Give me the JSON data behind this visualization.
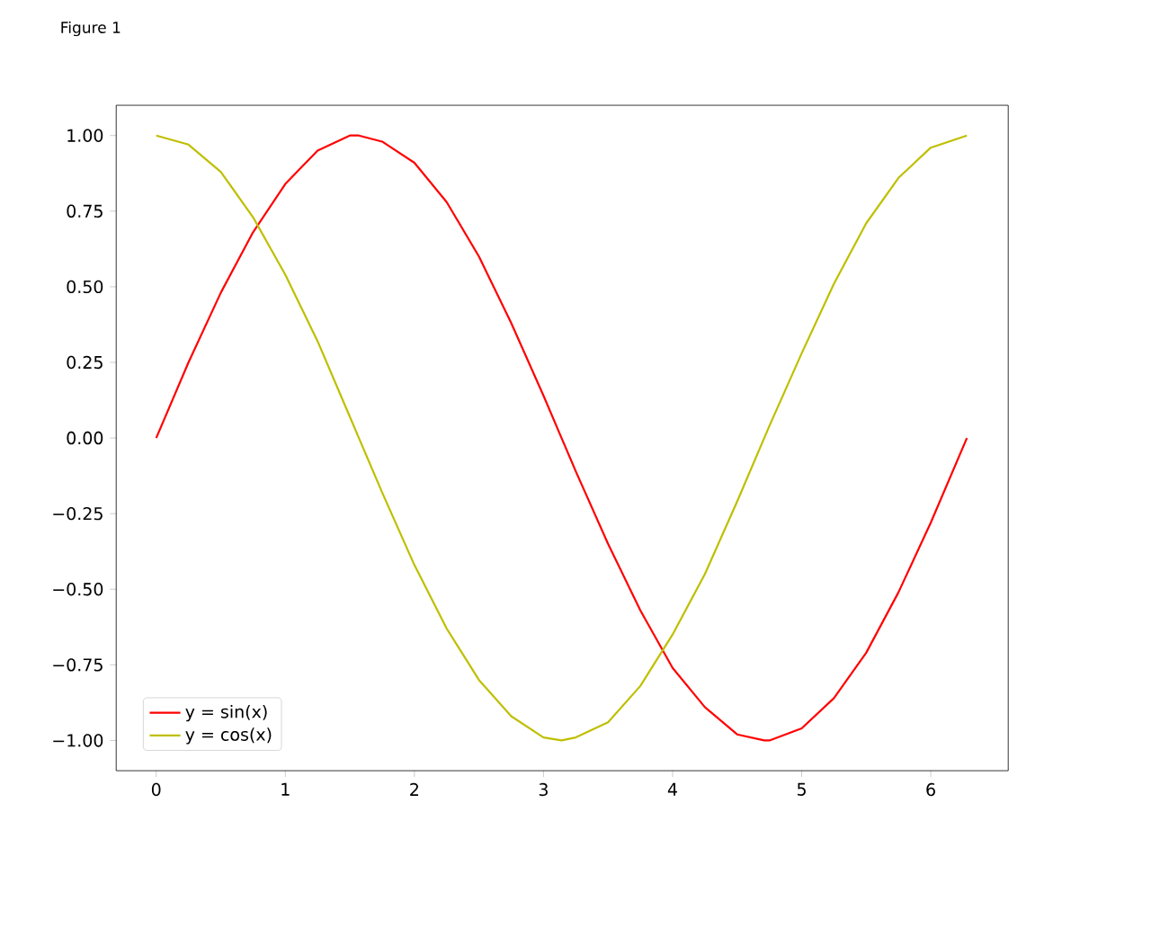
{
  "chart_data": {
    "type": "line",
    "annotations": [
      "Figure 1"
    ],
    "x": [
      0,
      0.25,
      0.5,
      0.75,
      1,
      1.25,
      1.5,
      1.57,
      1.75,
      2,
      2.25,
      2.5,
      2.75,
      3,
      3.14,
      3.25,
      3.5,
      3.75,
      4,
      4.25,
      4.5,
      4.71,
      4.75,
      5,
      5.25,
      5.5,
      5.75,
      6,
      6.28
    ],
    "series": [
      {
        "name": "y = sin(x)",
        "color": "#ff0000",
        "values": [
          0,
          0.25,
          0.48,
          0.68,
          0.84,
          0.95,
          1.0,
          1.0,
          0.98,
          0.91,
          0.78,
          0.6,
          0.38,
          0.14,
          0.0,
          -0.11,
          -0.35,
          -0.57,
          -0.76,
          -0.89,
          -0.98,
          -1.0,
          -1.0,
          -0.96,
          -0.86,
          -0.71,
          -0.51,
          -0.28,
          0
        ]
      },
      {
        "name": "y = cos(x)",
        "color": "#bfbf00",
        "values": [
          1,
          0.97,
          0.88,
          0.73,
          0.54,
          0.32,
          0.07,
          0.0,
          -0.18,
          -0.42,
          -0.63,
          -0.8,
          -0.92,
          -0.99,
          -1.0,
          -0.99,
          -0.94,
          -0.82,
          -0.65,
          -0.45,
          -0.21,
          0.0,
          0.04,
          0.28,
          0.51,
          0.71,
          0.86,
          0.96,
          1.0
        ]
      }
    ],
    "xlim": [
      -0.31,
      6.6
    ],
    "ylim": [
      -1.1,
      1.1
    ],
    "xticks": [
      0,
      1,
      2,
      3,
      4,
      5,
      6
    ],
    "yticks": [
      {
        "value": -1,
        "label": "−1.00"
      },
      {
        "value": -0.75,
        "label": "−0.75"
      },
      {
        "value": -0.5,
        "label": "−0.50"
      },
      {
        "value": -0.25,
        "label": "−0.25"
      },
      {
        "value": 0,
        "label": "0.00"
      },
      {
        "value": 0.25,
        "label": "0.25"
      },
      {
        "value": 0.5,
        "label": "0.50"
      },
      {
        "value": 0.75,
        "label": "0.75"
      },
      {
        "value": 1,
        "label": "1.00"
      }
    ],
    "legend": "bottom left",
    "grid": false,
    "marker": "none",
    "line_style": "solid"
  }
}
